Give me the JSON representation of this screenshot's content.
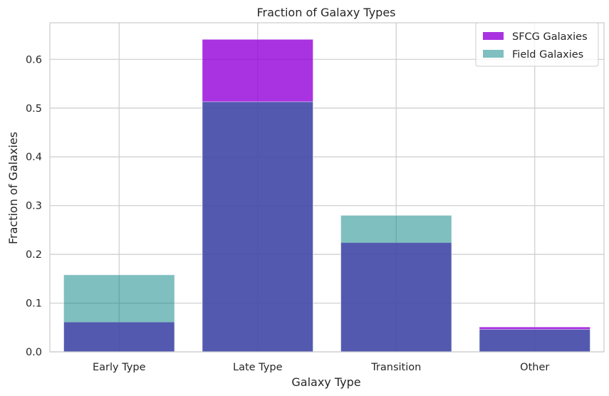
{
  "chart_data": {
    "type": "bar",
    "title": "Fraction of Galaxy Types",
    "xlabel": "Galaxy Type",
    "ylabel": "Fraction of Galaxies",
    "categories": [
      "Early Type",
      "Late Type",
      "Transition",
      "Other"
    ],
    "series": [
      {
        "name": "SFCG Galaxies",
        "color": "#9400d8",
        "opacity": 0.8,
        "values": [
          0.061,
          0.641,
          0.224,
          0.051
        ]
      },
      {
        "name": "Field Galaxies",
        "color": "#008080",
        "opacity": 0.5,
        "values": [
          0.158,
          0.513,
          0.28,
          0.046
        ]
      }
    ],
    "ylim": [
      0,
      0.675
    ],
    "yticks": [
      "0.0",
      "0.1",
      "0.2",
      "0.3",
      "0.4",
      "0.5",
      "0.6"
    ],
    "grid": true,
    "legend_position": "top-right",
    "style": "seaborn-whitegrid"
  }
}
